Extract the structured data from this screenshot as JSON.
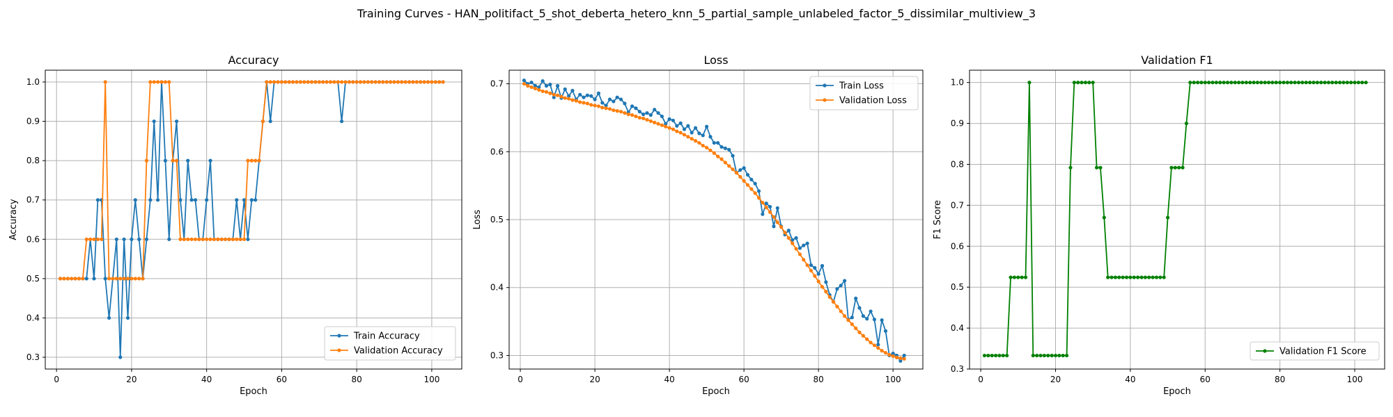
{
  "title": "Training Curves - HAN_politifact_5_shot_deberta_hetero_knn_5_partial_sample_unlabeled_factor_5_dissimilar_multiview_3",
  "chart_data": [
    {
      "type": "line",
      "title": "Accuracy",
      "xlabel": "Epoch",
      "ylabel": "Accuracy",
      "xlim": [
        -3,
        108
      ],
      "ylim": [
        0.27,
        1.03
      ],
      "xticks": [
        0,
        20,
        40,
        60,
        80,
        100
      ],
      "yticks": [
        0.3,
        0.4,
        0.5,
        0.6,
        0.7,
        0.8,
        0.9,
        1.0
      ],
      "ytick_labels": [
        "0.3",
        "0.4",
        "0.5",
        "0.6",
        "0.7",
        "0.8",
        "0.9",
        "1.0"
      ],
      "grid": true,
      "legend_position": "lower-right",
      "x": [
        1,
        2,
        3,
        4,
        5,
        6,
        7,
        8,
        9,
        10,
        11,
        12,
        13,
        14,
        15,
        16,
        17,
        18,
        19,
        20,
        21,
        22,
        23,
        24,
        25,
        26,
        27,
        28,
        29,
        30,
        31,
        32,
        33,
        34,
        35,
        36,
        37,
        38,
        39,
        40,
        41,
        42,
        43,
        44,
        45,
        46,
        47,
        48,
        49,
        50,
        51,
        52,
        53,
        54,
        55,
        56,
        57,
        58,
        59,
        60,
        61,
        62,
        63,
        64,
        65,
        66,
        67,
        68,
        69,
        70,
        71,
        72,
        73,
        74,
        75,
        76,
        77,
        78,
        79,
        80,
        81,
        82,
        83,
        84,
        85,
        86,
        87,
        88,
        89,
        90,
        91,
        92,
        93,
        94,
        95,
        96,
        97,
        98,
        99,
        100,
        101,
        102,
        103
      ],
      "series": [
        {
          "name": "Train Accuracy",
          "color": "#1f77b4",
          "values": [
            0.5,
            0.5,
            0.5,
            0.5,
            0.5,
            0.5,
            0.5,
            0.5,
            0.6,
            0.5,
            0.7,
            0.7,
            0.5,
            0.4,
            0.5,
            0.6,
            0.3,
            0.6,
            0.4,
            0.6,
            0.7,
            0.6,
            0.5,
            0.6,
            0.7,
            0.9,
            0.7,
            1.0,
            0.8,
            0.6,
            0.8,
            0.9,
            0.7,
            0.6,
            0.8,
            0.7,
            0.7,
            0.6,
            0.6,
            0.7,
            0.8,
            0.6,
            0.6,
            0.6,
            0.6,
            0.6,
            0.6,
            0.7,
            0.6,
            0.7,
            0.6,
            0.7,
            0.7,
            0.8,
            0.9,
            1.0,
            0.9,
            1.0,
            1.0,
            1.0,
            1.0,
            1.0,
            1.0,
            1.0,
            1.0,
            1.0,
            1.0,
            1.0,
            1.0,
            1.0,
            1.0,
            1.0,
            1.0,
            1.0,
            1.0,
            0.9,
            1.0,
            1.0,
            1.0,
            1.0,
            1.0,
            1.0,
            1.0,
            1.0,
            1.0,
            1.0,
            1.0,
            1.0,
            1.0,
            1.0,
            1.0,
            1.0,
            1.0,
            1.0,
            1.0,
            1.0,
            1.0,
            1.0,
            1.0,
            1.0,
            1.0,
            1.0,
            1.0
          ]
        },
        {
          "name": "Validation Accuracy",
          "color": "#ff7f0e",
          "values": [
            0.5,
            0.5,
            0.5,
            0.5,
            0.5,
            0.5,
            0.5,
            0.6,
            0.6,
            0.6,
            0.6,
            0.6,
            1.0,
            0.5,
            0.5,
            0.5,
            0.5,
            0.5,
            0.5,
            0.5,
            0.5,
            0.5,
            0.5,
            0.8,
            1.0,
            1.0,
            1.0,
            1.0,
            1.0,
            1.0,
            0.8,
            0.8,
            0.6,
            0.6,
            0.6,
            0.6,
            0.6,
            0.6,
            0.6,
            0.6,
            0.6,
            0.6,
            0.6,
            0.6,
            0.6,
            0.6,
            0.6,
            0.6,
            0.6,
            0.6,
            0.8,
            0.8,
            0.8,
            0.8,
            0.9,
            1.0,
            1.0,
            1.0,
            1.0,
            1.0,
            1.0,
            1.0,
            1.0,
            1.0,
            1.0,
            1.0,
            1.0,
            1.0,
            1.0,
            1.0,
            1.0,
            1.0,
            1.0,
            1.0,
            1.0,
            1.0,
            1.0,
            1.0,
            1.0,
            1.0,
            1.0,
            1.0,
            1.0,
            1.0,
            1.0,
            1.0,
            1.0,
            1.0,
            1.0,
            1.0,
            1.0,
            1.0,
            1.0,
            1.0,
            1.0,
            1.0,
            1.0,
            1.0,
            1.0,
            1.0,
            1.0,
            1.0,
            1.0
          ]
        }
      ]
    },
    {
      "type": "line",
      "title": "Loss",
      "xlabel": "Epoch",
      "ylabel": "Loss",
      "xlim": [
        -3,
        108
      ],
      "ylim": [
        0.28,
        0.72
      ],
      "xticks": [
        0,
        20,
        40,
        60,
        80,
        100
      ],
      "yticks": [
        0.3,
        0.4,
        0.5,
        0.6,
        0.7
      ],
      "ytick_labels": [
        "0.3",
        "0.4",
        "0.5",
        "0.6",
        "0.7"
      ],
      "grid": true,
      "legend_position": "upper-right",
      "x": [
        1,
        2,
        3,
        4,
        5,
        6,
        7,
        8,
        9,
        10,
        11,
        12,
        13,
        14,
        15,
        16,
        17,
        18,
        19,
        20,
        21,
        22,
        23,
        24,
        25,
        26,
        27,
        28,
        29,
        30,
        31,
        32,
        33,
        34,
        35,
        36,
        37,
        38,
        39,
        40,
        41,
        42,
        43,
        44,
        45,
        46,
        47,
        48,
        49,
        50,
        51,
        52,
        53,
        54,
        55,
        56,
        57,
        58,
        59,
        60,
        61,
        62,
        63,
        64,
        65,
        66,
        67,
        68,
        69,
        70,
        71,
        72,
        73,
        74,
        75,
        76,
        77,
        78,
        79,
        80,
        81,
        82,
        83,
        84,
        85,
        86,
        87,
        88,
        89,
        90,
        91,
        92,
        93,
        94,
        95,
        96,
        97,
        98,
        99,
        100,
        101,
        102,
        103
      ],
      "series": [
        {
          "name": "Train Loss",
          "color": "#1f77b4",
          "values": [
            0.705,
            0.7,
            0.702,
            0.697,
            0.695,
            0.704,
            0.697,
            0.699,
            0.68,
            0.697,
            0.679,
            0.692,
            0.682,
            0.69,
            0.677,
            0.684,
            0.68,
            0.683,
            0.682,
            0.677,
            0.686,
            0.672,
            0.668,
            0.677,
            0.674,
            0.68,
            0.677,
            0.671,
            0.658,
            0.667,
            0.664,
            0.659,
            0.655,
            0.657,
            0.654,
            0.662,
            0.657,
            0.652,
            0.641,
            0.648,
            0.646,
            0.638,
            0.642,
            0.633,
            0.638,
            0.628,
            0.635,
            0.627,
            0.624,
            0.637,
            0.622,
            0.613,
            0.613,
            0.607,
            0.605,
            0.603,
            0.594,
            0.569,
            0.573,
            0.576,
            0.566,
            0.559,
            0.553,
            0.542,
            0.508,
            0.524,
            0.519,
            0.49,
            0.517,
            0.49,
            0.478,
            0.484,
            0.47,
            0.473,
            0.458,
            0.462,
            0.465,
            0.433,
            0.429,
            0.42,
            0.432,
            0.408,
            0.389,
            0.379,
            0.398,
            0.403,
            0.41,
            0.353,
            0.356,
            0.384,
            0.37,
            0.358,
            0.354,
            0.365,
            0.353,
            0.316,
            0.352,
            0.336,
            0.3,
            0.303,
            0.3,
            0.292,
            0.3
          ]
        },
        {
          "name": "Validation Loss",
          "color": "#ff7f0e",
          "values": [
            0.7,
            0.697,
            0.695,
            0.693,
            0.691,
            0.689,
            0.688,
            0.686,
            0.684,
            0.683,
            0.681,
            0.679,
            0.678,
            0.676,
            0.675,
            0.673,
            0.672,
            0.671,
            0.669,
            0.668,
            0.667,
            0.665,
            0.664,
            0.663,
            0.661,
            0.66,
            0.659,
            0.657,
            0.655,
            0.654,
            0.652,
            0.65,
            0.649,
            0.647,
            0.645,
            0.643,
            0.641,
            0.639,
            0.637,
            0.635,
            0.633,
            0.63,
            0.628,
            0.625,
            0.622,
            0.619,
            0.616,
            0.613,
            0.609,
            0.606,
            0.602,
            0.598,
            0.593,
            0.589,
            0.584,
            0.579,
            0.574,
            0.569,
            0.563,
            0.557,
            0.551,
            0.545,
            0.539,
            0.532,
            0.525,
            0.518,
            0.511,
            0.504,
            0.496,
            0.489,
            0.481,
            0.473,
            0.465,
            0.457,
            0.449,
            0.441,
            0.433,
            0.425,
            0.417,
            0.409,
            0.401,
            0.394,
            0.386,
            0.379,
            0.372,
            0.365,
            0.358,
            0.352,
            0.346,
            0.34,
            0.334,
            0.329,
            0.324,
            0.319,
            0.315,
            0.311,
            0.307,
            0.304,
            0.301,
            0.299,
            0.297,
            0.296,
            0.295
          ]
        }
      ]
    },
    {
      "type": "line",
      "title": "Validation F1",
      "xlabel": "Epoch",
      "ylabel": "F1 Score",
      "xlim": [
        -3,
        108
      ],
      "ylim": [
        0.3,
        1.03
      ],
      "xticks": [
        0,
        20,
        40,
        60,
        80,
        100
      ],
      "yticks": [
        0.3,
        0.4,
        0.5,
        0.6,
        0.7,
        0.8,
        0.9,
        1.0
      ],
      "ytick_labels": [
        "0.3",
        "0.4",
        "0.5",
        "0.6",
        "0.7",
        "0.8",
        "0.9",
        "1.0"
      ],
      "grid": true,
      "legend_position": "lower-right",
      "x": [
        1,
        2,
        3,
        4,
        5,
        6,
        7,
        8,
        9,
        10,
        11,
        12,
        13,
        14,
        15,
        16,
        17,
        18,
        19,
        20,
        21,
        22,
        23,
        24,
        25,
        26,
        27,
        28,
        29,
        30,
        31,
        32,
        33,
        34,
        35,
        36,
        37,
        38,
        39,
        40,
        41,
        42,
        43,
        44,
        45,
        46,
        47,
        48,
        49,
        50,
        51,
        52,
        53,
        54,
        55,
        56,
        57,
        58,
        59,
        60,
        61,
        62,
        63,
        64,
        65,
        66,
        67,
        68,
        69,
        70,
        71,
        72,
        73,
        74,
        75,
        76,
        77,
        78,
        79,
        80,
        81,
        82,
        83,
        84,
        85,
        86,
        87,
        88,
        89,
        90,
        91,
        92,
        93,
        94,
        95,
        96,
        97,
        98,
        99,
        100,
        101,
        102,
        103
      ],
      "series": [
        {
          "name": "Validation F1 Score",
          "color": "#008000",
          "values": [
            0.333,
            0.333,
            0.333,
            0.333,
            0.333,
            0.333,
            0.333,
            0.524,
            0.524,
            0.524,
            0.524,
            0.524,
            1.0,
            0.333,
            0.333,
            0.333,
            0.333,
            0.333,
            0.333,
            0.333,
            0.333,
            0.333,
            0.333,
            0.792,
            1.0,
            1.0,
            1.0,
            1.0,
            1.0,
            1.0,
            0.792,
            0.792,
            0.67,
            0.524,
            0.524,
            0.524,
            0.524,
            0.524,
            0.524,
            0.524,
            0.524,
            0.524,
            0.524,
            0.524,
            0.524,
            0.524,
            0.524,
            0.524,
            0.524,
            0.67,
            0.792,
            0.792,
            0.792,
            0.792,
            0.9,
            1.0,
            1.0,
            1.0,
            1.0,
            1.0,
            1.0,
            1.0,
            1.0,
            1.0,
            1.0,
            1.0,
            1.0,
            1.0,
            1.0,
            1.0,
            1.0,
            1.0,
            1.0,
            1.0,
            1.0,
            1.0,
            1.0,
            1.0,
            1.0,
            1.0,
            1.0,
            1.0,
            1.0,
            1.0,
            1.0,
            1.0,
            1.0,
            1.0,
            1.0,
            1.0,
            1.0,
            1.0,
            1.0,
            1.0,
            1.0,
            1.0,
            1.0,
            1.0,
            1.0,
            1.0,
            1.0,
            1.0,
            1.0
          ]
        }
      ]
    }
  ]
}
